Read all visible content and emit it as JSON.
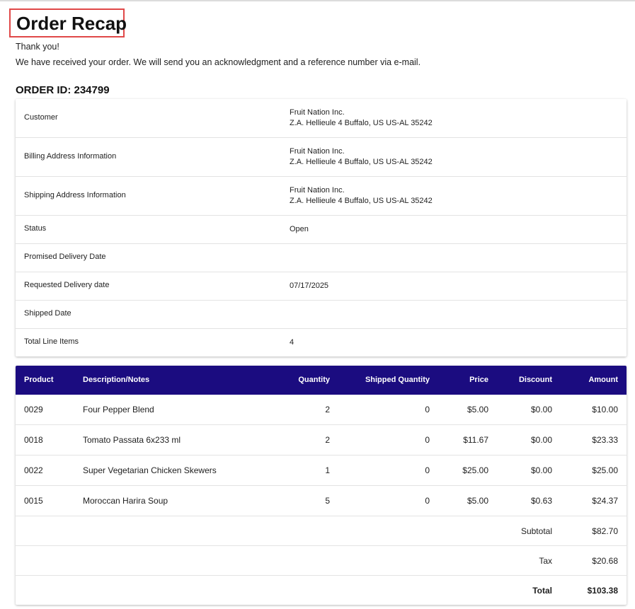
{
  "header": {
    "title": "Order Recap",
    "thanks": "Thank you!",
    "message": "We have received your order. We will send you an acknowledgment and a reference number via e-mail.",
    "order_id": "ORDER ID: 234799"
  },
  "details": [
    {
      "label": "Customer",
      "value": [
        "Fruit Nation Inc.",
        "Z.A. Hellieule 4 Buffalo, US US-AL 35242"
      ]
    },
    {
      "label": "Billing Address Information",
      "value": [
        "Fruit Nation Inc.",
        "Z.A. Hellieule 4 Buffalo, US US-AL 35242"
      ]
    },
    {
      "label": "Shipping Address Information",
      "value": [
        "Fruit Nation Inc.",
        "Z.A. Hellieule 4 Buffalo, US US-AL 35242"
      ]
    },
    {
      "label": "Status",
      "value": [
        "Open"
      ]
    },
    {
      "label": "Promised Delivery Date"
    },
    {
      "label": "Requested Delivery date",
      "value": [
        "07/17/2025"
      ]
    },
    {
      "label": "Shipped Date"
    },
    {
      "label": "Total Line Items",
      "value": [
        "4"
      ]
    }
  ],
  "table": {
    "columns": [
      "Product",
      "Description/Notes",
      "Quantity",
      "Shipped Quantity",
      "Price",
      "Discount",
      "Amount"
    ],
    "rows": [
      [
        "0029",
        "Four Pepper Blend",
        "2",
        "0",
        "$5.00",
        "$0.00",
        "$10.00"
      ],
      [
        "0018",
        "Tomato Passata 6x233 ml",
        "2",
        "0",
        "$11.67",
        "$0.00",
        "$23.33"
      ],
      [
        "0022",
        "Super Vegetarian Chicken Skewers",
        "1",
        "0",
        "$25.00",
        "$0.00",
        "$25.00"
      ],
      [
        "0015",
        "Moroccan Harira Soup",
        "5",
        "0",
        "$5.00",
        "$0.63",
        "$24.37"
      ]
    ],
    "summary": [
      {
        "label": "Subtotal",
        "value": "$82.70"
      },
      {
        "label": "Tax",
        "value": "$20.68"
      },
      {
        "label": "Total",
        "value": "$103.38"
      }
    ]
  }
}
